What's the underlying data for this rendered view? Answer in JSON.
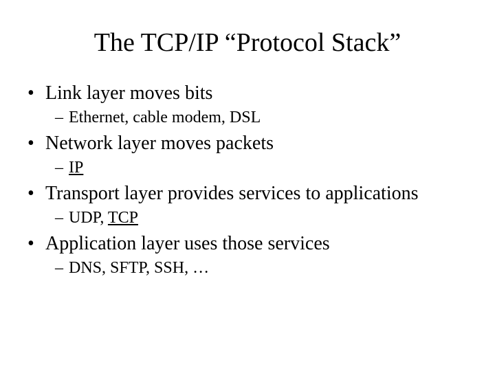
{
  "slide": {
    "title": "The TCP/IP “Protocol Stack”",
    "title_fontsize": 38,
    "bullets": [
      {
        "text": "Link layer moves bits",
        "sub": {
          "pre": "Ethernet, cable modem, DSL",
          "underlined": "",
          "post": ""
        }
      },
      {
        "text": "Network layer moves packets",
        "sub": {
          "pre": "",
          "underlined": "IP",
          "post": ""
        }
      },
      {
        "text": "Transport layer provides services to applications",
        "sub": {
          "pre": "UDP, ",
          "underlined": "TCP",
          "post": ""
        }
      },
      {
        "text": "Application layer uses those services",
        "sub": {
          "pre": "DNS, SFTP, SSH, …",
          "underlined": "",
          "post": ""
        }
      }
    ],
    "bullet_fontsize": 28,
    "sub_fontsize": 24,
    "text_color": "#000000",
    "background_color": "#ffffff",
    "font_family": "Times New Roman"
  }
}
